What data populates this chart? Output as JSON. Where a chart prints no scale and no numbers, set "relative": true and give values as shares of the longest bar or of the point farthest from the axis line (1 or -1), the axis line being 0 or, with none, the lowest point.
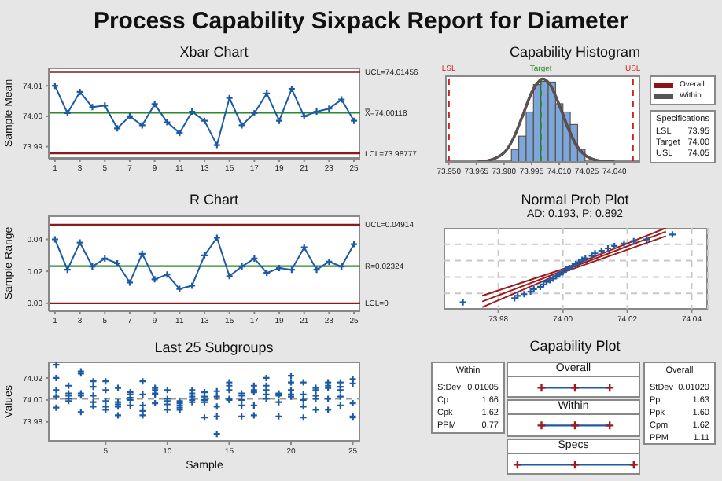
{
  "chart_data": [
    {
      "type": "other",
      "title": "Process Capability Sixpack Report for Diameter"
    },
    {
      "type": "line",
      "title": "Xbar Chart",
      "ylabel": "Sample Mean",
      "x": [
        1,
        2,
        3,
        4,
        5,
        6,
        7,
        8,
        9,
        10,
        11,
        12,
        13,
        14,
        15,
        16,
        17,
        18,
        19,
        20,
        21,
        22,
        23,
        24,
        25
      ],
      "xlim": [
        0.5,
        25.5
      ],
      "xticks": [
        1,
        3,
        5,
        7,
        9,
        11,
        13,
        15,
        17,
        19,
        21,
        23,
        25
      ],
      "ylim": [
        73.986,
        74.016
      ],
      "yticks": [
        {
          "value": 73.99,
          "label": "73.99"
        },
        {
          "value": 74,
          "label": "74.00"
        },
        {
          "value": 74.01,
          "label": "74.01"
        }
      ],
      "marker": "cross",
      "series": [
        {
          "color": "#1c5aa6",
          "values": [
            74.01,
            74.001,
            74.008,
            74.003,
            74.0035,
            73.996,
            74.0,
            73.997,
            74.004,
            73.998,
            73.9945,
            74.0015,
            73.9985,
            73.9905,
            74.006,
            73.997,
            74.001,
            74.0075,
            73.9985,
            74.009,
            74.0,
            74.0015,
            74.0025,
            74.0055,
            73.9985
          ]
        }
      ],
      "ref_lines": [
        {
          "axis": "y",
          "value": 74.01456,
          "label": "UCL=74.01456",
          "color": "#8b1a1a"
        },
        {
          "axis": "y",
          "value": 74.00118,
          "label": "X̿=74.00118",
          "color": "#2a8a2a"
        },
        {
          "axis": "y",
          "value": 73.98777,
          "label": "LCL=73.98777",
          "color": "#8b1a1a"
        }
      ]
    },
    {
      "type": "line",
      "title": "R Chart",
      "ylabel": "Sample Range",
      "x": [
        1,
        2,
        3,
        4,
        5,
        6,
        7,
        8,
        9,
        10,
        11,
        12,
        13,
        14,
        15,
        16,
        17,
        18,
        19,
        20,
        21,
        22,
        23,
        24,
        25
      ],
      "xlim": [
        0.5,
        25.5
      ],
      "xticks": [
        1,
        3,
        5,
        7,
        9,
        11,
        13,
        15,
        17,
        19,
        21,
        23,
        25
      ],
      "ylim": [
        -0.005,
        0.055
      ],
      "yticks": [
        {
          "value": 0,
          "label": "0.00"
        },
        {
          "value": 0.02,
          "label": "0.02"
        },
        {
          "value": 0.04,
          "label": "0.04"
        }
      ],
      "marker": "cross",
      "series": [
        {
          "color": "#1c5aa6",
          "values": [
            0.04,
            0.021,
            0.038,
            0.023,
            0.028,
            0.025,
            0.013,
            0.031,
            0.015,
            0.018,
            0.009,
            0.011,
            0.03,
            0.041,
            0.017,
            0.023,
            0.028,
            0.019,
            0.022,
            0.021,
            0.035,
            0.021,
            0.026,
            0.023,
            0.037
          ]
        }
      ],
      "ref_lines": [
        {
          "axis": "y",
          "value": 0.04914,
          "label": "UCL=0.04914",
          "color": "#8b1a1a"
        },
        {
          "axis": "y",
          "value": 0.02324,
          "label": "R̄=0.02324",
          "color": "#2a8a2a"
        },
        {
          "axis": "y",
          "value": 0,
          "label": "LCL=0",
          "color": "#8b1a1a"
        }
      ]
    },
    {
      "type": "scatter",
      "title": "Last 25 Subgroups",
      "xlabel": "Sample",
      "ylabel": "Values",
      "xlim": [
        0.4,
        25.6
      ],
      "xticks": [
        5,
        10,
        15,
        20,
        25
      ],
      "ylim": [
        73.962,
        74.035
      ],
      "yticks": [
        {
          "value": 73.98,
          "label": "73.98"
        },
        {
          "value": 74,
          "label": "74.00"
        },
        {
          "value": 74.02,
          "label": "74.02"
        }
      ],
      "marker": "cross",
      "series": [
        {
          "color": "#1c5aa6",
          "x": [
            1,
            1,
            1,
            1,
            1,
            2,
            2,
            2,
            2,
            2,
            3,
            3,
            3,
            3,
            3,
            4,
            4,
            4,
            4,
            4,
            5,
            5,
            5,
            5,
            5,
            6,
            6,
            6,
            6,
            6,
            7,
            7,
            7,
            7,
            7,
            8,
            8,
            8,
            8,
            8,
            9,
            9,
            9,
            9,
            9,
            10,
            10,
            10,
            10,
            10,
            11,
            11,
            11,
            11,
            11,
            12,
            12,
            12,
            12,
            12,
            13,
            13,
            13,
            13,
            13,
            14,
            14,
            14,
            14,
            14,
            15,
            15,
            15,
            15,
            15,
            16,
            16,
            16,
            16,
            16,
            17,
            17,
            17,
            17,
            17,
            18,
            18,
            18,
            18,
            18,
            19,
            19,
            19,
            19,
            19,
            20,
            20,
            20,
            20,
            20,
            21,
            21,
            21,
            21,
            21,
            22,
            22,
            22,
            22,
            22,
            23,
            23,
            23,
            23,
            23,
            24,
            24,
            24,
            24,
            24,
            25,
            25,
            25,
            25,
            25
          ],
          "values": [
            74.032,
            74.02,
            74.009,
            74.003,
            73.993,
            74.013,
            74.006,
            74.004,
            74.001,
            73.999,
            74.026,
            74.024,
            74.006,
            74.004,
            73.989,
            74.017,
            74.012,
            74.004,
            73.998,
            73.994,
            74.017,
            74.009,
            73.999,
            73.994,
            73.991,
            74.011,
            73.998,
            73.996,
            73.994,
            73.986,
            74.007,
            74.005,
            74.002,
            74.0,
            73.995,
            74.017,
            74.005,
            73.995,
            73.99,
            73.986,
            74.011,
            74.009,
            74.006,
            74.005,
            73.997,
            74.009,
            74.001,
            73.999,
            73.996,
            73.991,
            73.999,
            73.997,
            73.995,
            73.993,
            73.991,
            74.009,
            74.006,
            74.003,
            74.0,
            73.998,
            74.007,
            74.003,
            74.0,
            73.998,
            73.984,
            74.008,
            74.003,
            73.994,
            73.985,
            73.969,
            74.016,
            74.013,
            74.009,
            74.001,
            74.0,
            74.006,
            74.004,
            74.0,
            73.995,
            73.985,
            74.013,
            74.009,
            74.007,
            73.995,
            73.986,
            74.02,
            74.013,
            74.009,
            74.005,
            74.001,
            74.006,
            74.005,
            74.004,
            73.998,
            73.985,
            74.022,
            74.016,
            74.009,
            74.005,
            74.003,
            74.016,
            74.005,
            74.0,
            73.994,
            73.984,
            74.011,
            74.009,
            74.004,
            74.001,
            73.991,
            74.016,
            74.013,
            74.011,
            74.001,
            73.991,
            74.016,
            74.012,
            74.009,
            74.003,
            73.995,
            74.019,
            74.015,
            73.997,
            73.985,
            73.984
          ]
        }
      ],
      "ref_lines": [
        {
          "axis": "y",
          "value": 74.00118,
          "color": "#999999",
          "line_style": "dashed"
        }
      ]
    },
    {
      "type": "histogram",
      "title": "Capability Histogram",
      "relative": true,
      "color": "#7ea6d8",
      "bins": [
        73.984,
        73.988,
        73.992,
        73.996,
        74.0,
        74.004,
        74.008,
        74.012,
        74.016,
        74.02,
        74.024
      ],
      "values": [
        0.15,
        0.31,
        0.6,
        0.93,
        0.97,
        0.96,
        0.7,
        0.6,
        0.45,
        0.15
      ],
      "xlim": [
        73.948,
        74.054
      ],
      "xticks": [
        {
          "value": 73.95,
          "label": "73.950"
        },
        {
          "value": 73.965,
          "label": "73.965"
        },
        {
          "value": 73.98,
          "label": "73.980"
        },
        {
          "value": 73.995,
          "label": "73.995"
        },
        {
          "value": 74.01,
          "label": "74.010"
        },
        {
          "value": 74.025,
          "label": "74.025"
        },
        {
          "value": 74.04,
          "label": "74.040"
        }
      ],
      "series": [
        {
          "type": "line",
          "name": "Overall",
          "color": "#8b1414",
          "x": [
            73.97,
            73.98,
            73.985,
            73.99,
            73.995,
            74.0,
            74.001,
            74.005,
            74.01,
            74.015,
            74.02,
            74.03,
            74.04
          ],
          "values": [
            0.01,
            0.11,
            0.28,
            0.55,
            0.83,
            0.99,
            1.0,
            0.93,
            0.69,
            0.4,
            0.18,
            0.02,
            0.0
          ]
        },
        {
          "type": "line",
          "name": "Within",
          "color": "#555555",
          "x": [
            73.965,
            73.97,
            73.98,
            73.985,
            73.99,
            73.995,
            74.0,
            74.001,
            74.005,
            74.01,
            74.015,
            74.02,
            74.03,
            74.04
          ],
          "values": [
            0.0,
            0.01,
            0.11,
            0.28,
            0.55,
            0.84,
            0.99,
            1.0,
            0.93,
            0.68,
            0.39,
            0.17,
            0.02,
            0.0
          ]
        }
      ],
      "ref_lines": [
        {
          "axis": "x",
          "value": 73.95,
          "label": "LSL",
          "color": "#d42020",
          "line_style": "dashed"
        },
        {
          "axis": "x",
          "value": 74.0,
          "label": "Target",
          "color": "#2a8a2a",
          "line_style": "dashed"
        },
        {
          "axis": "x",
          "value": 74.05,
          "label": "USL",
          "color": "#d42020",
          "line_style": "dashed"
        }
      ],
      "legend": "right",
      "annotations": [
        "Specifications",
        "LSL",
        "73.95",
        "Target",
        "74.00",
        "USL",
        "74.05"
      ]
    },
    {
      "type": "line",
      "title": "Normal Prob Plot",
      "subtitle": "AD: 0.193, P: 0.892",
      "relative": true,
      "grid": true,
      "xlim": [
        73.963,
        74.045
      ],
      "xticks": [
        {
          "value": 73.98,
          "label": "73.98"
        },
        {
          "value": 74,
          "label": "74.00"
        },
        {
          "value": 74.02,
          "label": "74.02"
        },
        {
          "value": 74.04,
          "label": "74.04"
        }
      ],
      "series": [
        {
          "type": "scatter",
          "color": "#1c5aa6",
          "marker": "cross",
          "x": [
            73.969,
            73.985,
            73.986,
            73.988,
            73.99,
            73.991,
            73.993,
            73.994,
            73.995,
            73.996,
            73.997,
            73.998,
            73.999,
            74.0,
            74.001,
            74.002,
            74.003,
            74.004,
            74.005,
            74.006,
            74.007,
            74.009,
            74.01,
            74.012,
            74.014,
            74.016,
            74.019,
            74.022,
            74.026,
            74.034
          ],
          "values": [
            0.09,
            0.14,
            0.17,
            0.19,
            0.22,
            0.25,
            0.28,
            0.31,
            0.34,
            0.36,
            0.38,
            0.41,
            0.43,
            0.46,
            0.49,
            0.51,
            0.53,
            0.56,
            0.58,
            0.61,
            0.63,
            0.66,
            0.69,
            0.72,
            0.75,
            0.78,
            0.81,
            0.84,
            0.86,
            0.92
          ]
        },
        {
          "type": "line",
          "color": "#9b1c1c",
          "x": [
            73.975,
            74.001,
            74.032
          ],
          "values": [
            0.1,
            0.49,
            0.955
          ]
        },
        {
          "type": "line",
          "color": "#9b1c1c",
          "x": [
            73.975,
            74.001,
            74.032
          ],
          "values": [
            0.03,
            0.47,
            0.9
          ]
        },
        {
          "type": "line",
          "color": "#9b1c1c",
          "x": [
            73.975,
            74.001,
            74.032
          ],
          "values": [
            0.17,
            0.51,
            1.0
          ]
        }
      ]
    },
    {
      "type": "other",
      "title": "Capability Plot",
      "annotations": [
        "Within",
        "StDev",
        "0.01005",
        "Cp",
        "1.66",
        "Cpk",
        "1.62",
        "PPM",
        "0.77",
        "Overall",
        "Within",
        "Specs",
        "Overall",
        "StDev",
        "0.01020",
        "Pp",
        "1.63",
        "Ppk",
        "1.60",
        "Cpm",
        "1.62",
        "PPM",
        "1.11"
      ]
    }
  ]
}
